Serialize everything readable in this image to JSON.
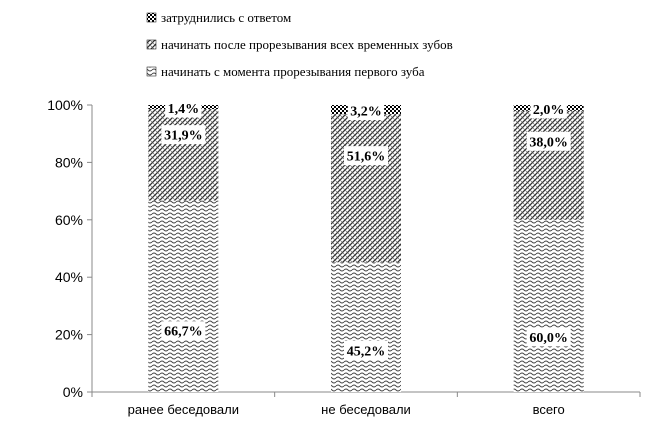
{
  "chart_data": {
    "type": "bar",
    "stacked": true,
    "categories": [
      "ранее беседовали",
      "не беседовали",
      "всего"
    ],
    "series": [
      {
        "name": "начинать с момента прорезывания первого зуба",
        "values": [
          66.7,
          45.2,
          60.0
        ],
        "labels": [
          "66,7%",
          "45,2%",
          "60,0%"
        ],
        "pattern": "waves"
      },
      {
        "name": "начинать после прорезывания всех временных зубов",
        "values": [
          31.9,
          51.6,
          38.0
        ],
        "labels": [
          "31,9%",
          "51,6%",
          "38,0%"
        ],
        "pattern": "diagonal"
      },
      {
        "name": "затруднились с ответом",
        "values": [
          1.4,
          3.2,
          2.0
        ],
        "labels": [
          "1,4%",
          "3,2%",
          "2,0%"
        ],
        "pattern": "checker"
      }
    ],
    "ylim": [
      0,
      100
    ],
    "yticks": [
      "0%",
      "20%",
      "40%",
      "60%",
      "80%",
      "100%"
    ],
    "legend_position": "top",
    "grid": false
  }
}
